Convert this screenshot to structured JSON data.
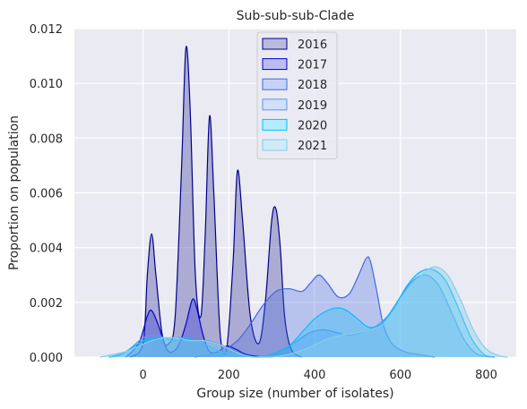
{
  "chart_data": {
    "type": "area",
    "title": "Sub-sub-sub-Clade",
    "xlabel": "Group size (number of isolates)",
    "ylabel": "Proportion on population",
    "xlim": [
      -160,
      870
    ],
    "ylim": [
      0,
      0.012
    ],
    "xticks": [
      0,
      200,
      400,
      600,
      800
    ],
    "xtick_labels": [
      "0",
      "200",
      "400",
      "600",
      "800"
    ],
    "yticks": [
      0,
      0.002,
      0.004,
      0.006,
      0.008,
      0.01,
      0.012
    ],
    "ytick_labels": [
      "0.000",
      "0.002",
      "0.004",
      "0.006",
      "0.008",
      "0.010",
      "0.012"
    ],
    "grid": true,
    "legend_position": "top-center",
    "series": [
      {
        "name": "2016",
        "fill": "#1a1a8c",
        "fill_opacity": 0.3,
        "stroke": "#00008b",
        "points": [
          [
            -30,
            0
          ],
          [
            0,
            0.0005
          ],
          [
            10,
            0.003
          ],
          [
            20,
            0.0045
          ],
          [
            30,
            0.003
          ],
          [
            45,
            0.0008
          ],
          [
            60,
            0.0005
          ],
          [
            75,
            0.0015
          ],
          [
            90,
            0.007
          ],
          [
            100,
            0.0113
          ],
          [
            110,
            0.009
          ],
          [
            122,
            0.003
          ],
          [
            135,
            0.0015
          ],
          [
            145,
            0.0045
          ],
          [
            155,
            0.0088
          ],
          [
            165,
            0.006
          ],
          [
            180,
            0.0008
          ],
          [
            195,
            0.0003
          ],
          [
            210,
            0.0035
          ],
          [
            220,
            0.0068
          ],
          [
            232,
            0.005
          ],
          [
            250,
            0.0015
          ],
          [
            270,
            0.0005
          ],
          [
            285,
            0.002
          ],
          [
            300,
            0.005
          ],
          [
            310,
            0.0054
          ],
          [
            320,
            0.004
          ],
          [
            330,
            0.0015
          ],
          [
            345,
            0.0003
          ],
          [
            370,
            0
          ]
        ]
      },
      {
        "name": "2017",
        "fill": "#2020dd",
        "fill_opacity": 0.3,
        "stroke": "#0000cd",
        "points": [
          [
            -40,
            0
          ],
          [
            -10,
            0.0005
          ],
          [
            10,
            0.0015
          ],
          [
            20,
            0.0017
          ],
          [
            35,
            0.0012
          ],
          [
            55,
            0.0003
          ],
          [
            70,
            0.0002
          ],
          [
            85,
            0.0005
          ],
          [
            100,
            0.0012
          ],
          [
            115,
            0.0021
          ],
          [
            125,
            0.0018
          ],
          [
            140,
            0.0008
          ],
          [
            155,
            0.0002
          ],
          [
            175,
            0.0002
          ],
          [
            195,
            0.0004
          ],
          [
            215,
            0.0003
          ],
          [
            240,
            0.0001
          ],
          [
            280,
            0
          ]
        ]
      },
      {
        "name": "2018",
        "fill": "#4169e1",
        "fill_opacity": 0.3,
        "stroke": "#4169e1",
        "points": [
          [
            120,
            0
          ],
          [
            180,
            0.0002
          ],
          [
            220,
            0.0006
          ],
          [
            250,
            0.0012
          ],
          [
            280,
            0.0019
          ],
          [
            310,
            0.0024
          ],
          [
            340,
            0.0025
          ],
          [
            370,
            0.0024
          ],
          [
            390,
            0.0027
          ],
          [
            410,
            0.003
          ],
          [
            430,
            0.0027
          ],
          [
            455,
            0.0022
          ],
          [
            480,
            0.0023
          ],
          [
            500,
            0.0029
          ],
          [
            520,
            0.0036
          ],
          [
            530,
            0.0035
          ],
          [
            545,
            0.0024
          ],
          [
            560,
            0.0012
          ],
          [
            580,
            0.0005
          ],
          [
            610,
            0.0002
          ],
          [
            640,
            0.0001
          ],
          [
            680,
            0
          ]
        ]
      },
      {
        "name": "2019",
        "fill": "#6495ed",
        "fill_opacity": 0.3,
        "stroke": "#6495ed",
        "points": [
          [
            -80,
            0
          ],
          [
            -40,
            0.0002
          ],
          [
            0,
            0.0007
          ],
          [
            30,
            0.0008
          ],
          [
            70,
            0.0006
          ],
          [
            110,
            0.0006
          ],
          [
            150,
            0.0006
          ],
          [
            190,
            0.0004
          ],
          [
            230,
            0.0001
          ],
          [
            270,
            0
          ],
          [
            300,
            0.0001
          ],
          [
            330,
            0.0003
          ],
          [
            360,
            0.0006
          ],
          [
            390,
            0.0009
          ],
          [
            420,
            0.001
          ],
          [
            450,
            0.0009
          ],
          [
            480,
            0.0008
          ],
          [
            510,
            0.0009
          ],
          [
            540,
            0.0011
          ],
          [
            570,
            0.0015
          ],
          [
            600,
            0.0022
          ],
          [
            630,
            0.0028
          ],
          [
            660,
            0.003
          ],
          [
            690,
            0.0026
          ],
          [
            720,
            0.0016
          ],
          [
            750,
            0.0006
          ],
          [
            780,
            0.0001
          ],
          [
            820,
            0
          ]
        ]
      },
      {
        "name": "2020",
        "fill": "#00bfff",
        "fill_opacity": 0.3,
        "stroke": "#00bfff",
        "points": [
          [
            -80,
            0
          ],
          [
            -50,
            0.0001
          ],
          [
            -10,
            0.0005
          ],
          [
            20,
            0.0007
          ],
          [
            60,
            0.0007
          ],
          [
            100,
            0.0007
          ],
          [
            140,
            0.0005
          ],
          [
            180,
            0.0002
          ],
          [
            220,
            0.0001
          ],
          [
            260,
            0
          ],
          [
            300,
            0.0001
          ],
          [
            340,
            0.0004
          ],
          [
            370,
            0.0009
          ],
          [
            400,
            0.0014
          ],
          [
            430,
            0.0017
          ],
          [
            455,
            0.0018
          ],
          [
            475,
            0.0017
          ],
          [
            500,
            0.0014
          ],
          [
            525,
            0.0011
          ],
          [
            555,
            0.0012
          ],
          [
            585,
            0.0018
          ],
          [
            615,
            0.0026
          ],
          [
            645,
            0.0031
          ],
          [
            675,
            0.0032
          ],
          [
            705,
            0.0028
          ],
          [
            735,
            0.0018
          ],
          [
            765,
            0.0007
          ],
          [
            795,
            0.0001
          ],
          [
            820,
            0
          ]
        ]
      },
      {
        "name": "2021",
        "fill": "#87ceeb",
        "fill_opacity": 0.4,
        "stroke": "#87ceeb",
        "points": [
          [
            -100,
            0
          ],
          [
            -70,
            0.0001
          ],
          [
            -40,
            0.0002
          ],
          [
            -10,
            0.0004
          ],
          [
            20,
            0.0006
          ],
          [
            50,
            0.0007
          ],
          [
            80,
            0.0007
          ],
          [
            110,
            0.0006
          ],
          [
            140,
            0.0006
          ],
          [
            170,
            0.0005
          ],
          [
            200,
            0.0003
          ],
          [
            230,
            0.0001
          ],
          [
            260,
            0
          ],
          [
            300,
            0
          ],
          [
            340,
            0.0001
          ],
          [
            380,
            0.0003
          ],
          [
            420,
            0.0006
          ],
          [
            460,
            0.0008
          ],
          [
            500,
            0.0009
          ],
          [
            530,
            0.001
          ],
          [
            560,
            0.0012
          ],
          [
            590,
            0.0017
          ],
          [
            620,
            0.0024
          ],
          [
            650,
            0.003
          ],
          [
            680,
            0.0033
          ],
          [
            710,
            0.003
          ],
          [
            740,
            0.0021
          ],
          [
            770,
            0.001
          ],
          [
            800,
            0.0003
          ],
          [
            830,
            5e-05
          ],
          [
            850,
            0
          ]
        ]
      }
    ]
  }
}
